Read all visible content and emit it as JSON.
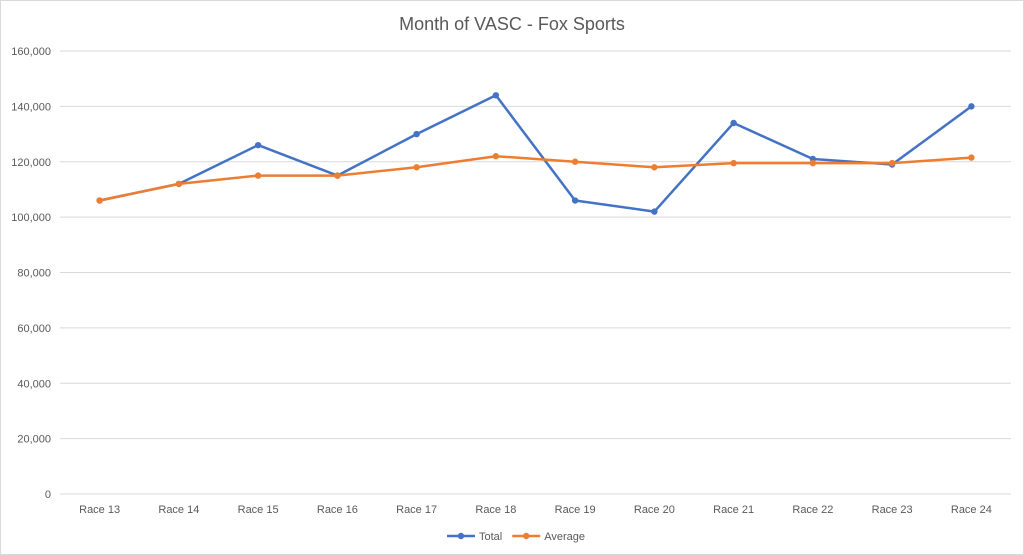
{
  "chart_data": {
    "type": "line",
    "title": "Month of VASC - Fox Sports",
    "xlabel": "",
    "ylabel": "",
    "categories": [
      "Race 13",
      "Race 14",
      "Race 15",
      "Race 16",
      "Race 17",
      "Race 18",
      "Race 19",
      "Race 20",
      "Race 21",
      "Race 22",
      "Race 23",
      "Race 24"
    ],
    "ylim": [
      0,
      160000
    ],
    "yticks": [
      0,
      20000,
      40000,
      60000,
      80000,
      100000,
      120000,
      140000,
      160000
    ],
    "ytick_labels": [
      "0",
      "20,000",
      "40,000",
      "60,000",
      "80,000",
      "100,000",
      "120,000",
      "140,000",
      "160,000"
    ],
    "grid": true,
    "legend_position": "bottom",
    "series": [
      {
        "name": "Total",
        "color": "#4472c4",
        "values": [
          106000,
          112000,
          126000,
          115000,
          130000,
          144000,
          106000,
          102000,
          134000,
          121000,
          119000,
          140000
        ]
      },
      {
        "name": "Average",
        "color": "#ed7d31",
        "values": [
          106000,
          112000,
          115000,
          115000,
          118000,
          122000,
          120000,
          118000,
          119500,
          119500,
          119500,
          121500
        ]
      }
    ]
  }
}
